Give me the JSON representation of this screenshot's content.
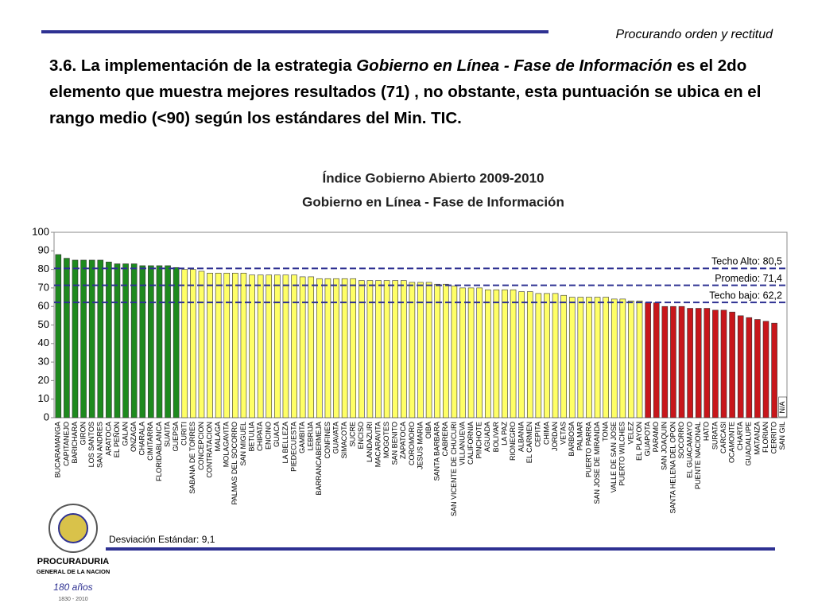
{
  "header": {
    "motto": "Procurando orden y rectitud"
  },
  "heading": {
    "part1": "3.6. La implementación de la estrategia ",
    "italic": "Gobierno en Línea - Fase de Información",
    "part2": " es el 2do elemento que muestra mejores resultados (71) , no obstante, esta puntuación se ubica en el rango medio (<90) según los estándares del Min. TIC."
  },
  "chart_data": {
    "type": "bar",
    "title": [
      "Índice Gobierno Abierto 2009-2010",
      "Gobierno en Línea - Fase de Información"
    ],
    "categories": [
      "BUCARAMANGA",
      "CAPITANEJO",
      "BARICHARA",
      "GIRON",
      "LOS SANTOS",
      "SAN ANDRES",
      "ARATOCA",
      "EL PEÑON",
      "GALAN",
      "ONZAGA",
      "CHARALA",
      "CIMITARRA",
      "FLORIDABLANCA",
      "SUAITA",
      "GUEPSA",
      "CURITI",
      "SABANA DE TORRES",
      "CONCEPCION",
      "CONTRATACION",
      "MALAGA",
      "MOLAGAVITA",
      "PALMAS DEL SOCORRO",
      "SAN MIGUEL",
      "BETULIA",
      "CHIPATA",
      "ENCINO",
      "GUACA",
      "LA BELLEZA",
      "PIEDECUESTA",
      "GAMBITA",
      "LEBRIJA",
      "BARRANCABERMEJA",
      "CONFINES",
      "GUAVATA",
      "SIMACOTA",
      "SUCRE",
      "ENCISO",
      "LANDAZURI",
      "MACARAVITA",
      "MOGOTES",
      "SAN BENITO",
      "ZAPATOCA",
      "COROMORO",
      "JESUS MARIA",
      "OIBA",
      "SANTA BARBARA",
      "CABRERA",
      "SAN VICENTE DE CHUCURI",
      "VILLANUEVA",
      "CALIFORNIA",
      "PINCHOTE",
      "AGUADA",
      "BOLIVAR",
      "LA PAZ",
      "RIONEGRO",
      "ALBANIA",
      "EL CARMEN",
      "CEPITA",
      "CHIMA",
      "JORDAN",
      "VETAS",
      "BARBOSA",
      "PALMAR",
      "PUERTO PARRA",
      "SAN JOSE DE MIRANDA",
      "TONA",
      "VALLE DE SAN JOSE",
      "PUERTO WILCHES",
      "VELEZ",
      "EL PLAYON",
      "GUAPOTA",
      "PARAMO",
      "SAN JOAQUIN",
      "SANTA HELENA DEL OPON",
      "SOCORRO",
      "EL GUACAMAYO",
      "PUENTE NACIONAL",
      "HATO",
      "SURATA",
      "CARCASI",
      "OCAMONTE",
      "CHARTA",
      "GUADALUPE",
      "MATANZA",
      "FLORIAN",
      "CERRITO",
      "SAN GIL"
    ],
    "values": [
      88,
      86,
      85,
      85,
      85,
      85,
      84,
      83,
      83,
      83,
      82,
      82,
      82,
      82,
      81,
      80,
      80,
      79,
      78,
      78,
      78,
      78,
      78,
      77,
      77,
      77,
      77,
      77,
      77,
      76,
      76,
      75,
      75,
      75,
      75,
      75,
      74,
      74,
      74,
      74,
      74,
      74,
      73,
      73,
      73,
      72,
      72,
      71,
      70,
      70,
      70,
      69,
      69,
      69,
      69,
      68,
      68,
      67,
      67,
      67,
      66,
      65,
      65,
      65,
      65,
      65,
      64,
      64,
      63,
      63,
      62,
      62,
      60,
      60,
      60,
      59,
      59,
      59,
      58,
      58,
      57,
      55,
      54,
      53,
      52,
      51,
      null
    ],
    "na_label": "N/A",
    "ylim": [
      0,
      100
    ],
    "yticks": [
      0,
      10,
      20,
      30,
      40,
      50,
      60,
      70,
      80,
      90,
      100
    ],
    "reference_lines": [
      {
        "label": "Techo Alto: 80,5",
        "value": 80.5
      },
      {
        "label": "Promedio: 71,4",
        "value": 71.4
      },
      {
        "label": "Techo bajo: 62,2",
        "value": 62.2
      }
    ],
    "bar_colors": {
      "above_high": "#1e8a1e",
      "between": "#ffff66",
      "below_low": "#c8161b"
    },
    "line_color": "#2e3192"
  },
  "footnote": "Desviación Estándar: 9,1",
  "logo": {
    "line1": "PROCURADURIA",
    "line2": "GENERAL DE LA NACION",
    "years": "180 años",
    "range": "1830 - 2010"
  }
}
